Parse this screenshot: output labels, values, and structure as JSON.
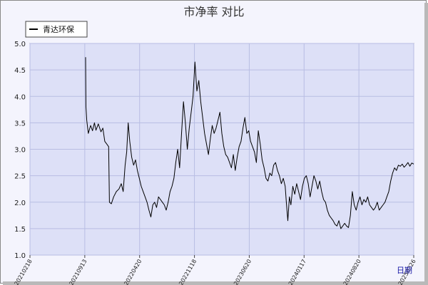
{
  "chart_data": {
    "type": "line",
    "title": "市净率 对比",
    "x_corner_label": "日期",
    "ylim": [
      1.0,
      5.0
    ],
    "yticks": [
      "5.0",
      "4.5",
      "4.0",
      "3.5",
      "3.0",
      "2.5",
      "2.0",
      "1.5",
      "1.0"
    ],
    "xticks": [
      "20210218",
      "20210913",
      "20220420",
      "20221118",
      "20230620",
      "20240117",
      "20240820",
      "20250326"
    ],
    "grid": true,
    "legend_position": "top-left",
    "series": [
      {
        "name": "青达环保",
        "color": "#000000",
        "points": [
          [
            0.145,
            4.74
          ],
          [
            0.146,
            3.8
          ],
          [
            0.148,
            3.55
          ],
          [
            0.152,
            3.3
          ],
          [
            0.158,
            3.45
          ],
          [
            0.163,
            3.35
          ],
          [
            0.168,
            3.5
          ],
          [
            0.172,
            3.36
          ],
          [
            0.178,
            3.48
          ],
          [
            0.185,
            3.33
          ],
          [
            0.19,
            3.4
          ],
          [
            0.195,
            3.15
          ],
          [
            0.2,
            3.1
          ],
          [
            0.205,
            3.05
          ],
          [
            0.207,
            2.0
          ],
          [
            0.212,
            1.97
          ],
          [
            0.218,
            2.1
          ],
          [
            0.225,
            2.2
          ],
          [
            0.232,
            2.25
          ],
          [
            0.238,
            2.35
          ],
          [
            0.243,
            2.2
          ],
          [
            0.248,
            2.7
          ],
          [
            0.252,
            2.95
          ],
          [
            0.256,
            3.5
          ],
          [
            0.26,
            3.15
          ],
          [
            0.265,
            2.85
          ],
          [
            0.27,
            2.7
          ],
          [
            0.275,
            2.8
          ],
          [
            0.28,
            2.6
          ],
          [
            0.285,
            2.45
          ],
          [
            0.29,
            2.3
          ],
          [
            0.295,
            2.2
          ],
          [
            0.3,
            2.1
          ],
          [
            0.305,
            2.0
          ],
          [
            0.31,
            1.85
          ],
          [
            0.315,
            1.72
          ],
          [
            0.32,
            1.95
          ],
          [
            0.325,
            2.0
          ],
          [
            0.33,
            1.9
          ],
          [
            0.335,
            2.1
          ],
          [
            0.34,
            2.05
          ],
          [
            0.345,
            2.0
          ],
          [
            0.35,
            1.95
          ],
          [
            0.355,
            1.85
          ],
          [
            0.36,
            2.0
          ],
          [
            0.365,
            2.2
          ],
          [
            0.37,
            2.3
          ],
          [
            0.375,
            2.45
          ],
          [
            0.38,
            2.75
          ],
          [
            0.385,
            3.0
          ],
          [
            0.39,
            2.65
          ],
          [
            0.395,
            3.3
          ],
          [
            0.4,
            3.9
          ],
          [
            0.405,
            3.5
          ],
          [
            0.41,
            3.0
          ],
          [
            0.415,
            3.4
          ],
          [
            0.42,
            3.7
          ],
          [
            0.425,
            4.0
          ],
          [
            0.43,
            4.65
          ],
          [
            0.435,
            4.1
          ],
          [
            0.44,
            4.3
          ],
          [
            0.445,
            3.9
          ],
          [
            0.45,
            3.6
          ],
          [
            0.455,
            3.3
          ],
          [
            0.46,
            3.1
          ],
          [
            0.465,
            2.9
          ],
          [
            0.47,
            3.2
          ],
          [
            0.475,
            3.45
          ],
          [
            0.48,
            3.3
          ],
          [
            0.485,
            3.4
          ],
          [
            0.49,
            3.55
          ],
          [
            0.495,
            3.7
          ],
          [
            0.5,
            3.3
          ],
          [
            0.505,
            3.05
          ],
          [
            0.51,
            2.9
          ],
          [
            0.515,
            2.85
          ],
          [
            0.52,
            2.75
          ],
          [
            0.525,
            2.65
          ],
          [
            0.53,
            2.9
          ],
          [
            0.535,
            2.6
          ],
          [
            0.54,
            2.85
          ],
          [
            0.545,
            3.05
          ],
          [
            0.55,
            3.15
          ],
          [
            0.555,
            3.4
          ],
          [
            0.56,
            3.6
          ],
          [
            0.565,
            3.3
          ],
          [
            0.57,
            3.35
          ],
          [
            0.575,
            3.15
          ],
          [
            0.58,
            3.05
          ],
          [
            0.585,
            2.95
          ],
          [
            0.59,
            2.75
          ],
          [
            0.595,
            3.35
          ],
          [
            0.6,
            3.1
          ],
          [
            0.605,
            2.8
          ],
          [
            0.61,
            2.65
          ],
          [
            0.615,
            2.45
          ],
          [
            0.62,
            2.4
          ],
          [
            0.625,
            2.55
          ],
          [
            0.63,
            2.5
          ],
          [
            0.635,
            2.7
          ],
          [
            0.64,
            2.75
          ],
          [
            0.645,
            2.6
          ],
          [
            0.65,
            2.5
          ],
          [
            0.655,
            2.35
          ],
          [
            0.66,
            2.45
          ],
          [
            0.665,
            2.3
          ],
          [
            0.668,
            2.0
          ],
          [
            0.672,
            1.65
          ],
          [
            0.676,
            2.1
          ],
          [
            0.68,
            1.95
          ],
          [
            0.685,
            2.3
          ],
          [
            0.69,
            2.15
          ],
          [
            0.695,
            2.35
          ],
          [
            0.7,
            2.2
          ],
          [
            0.705,
            2.05
          ],
          [
            0.71,
            2.3
          ],
          [
            0.715,
            2.45
          ],
          [
            0.72,
            2.5
          ],
          [
            0.725,
            2.35
          ],
          [
            0.73,
            2.1
          ],
          [
            0.735,
            2.3
          ],
          [
            0.74,
            2.5
          ],
          [
            0.745,
            2.4
          ],
          [
            0.75,
            2.25
          ],
          [
            0.755,
            2.4
          ],
          [
            0.76,
            2.2
          ],
          [
            0.765,
            2.05
          ],
          [
            0.77,
            2.0
          ],
          [
            0.775,
            1.85
          ],
          [
            0.78,
            1.75
          ],
          [
            0.785,
            1.7
          ],
          [
            0.79,
            1.65
          ],
          [
            0.795,
            1.58
          ],
          [
            0.8,
            1.55
          ],
          [
            0.805,
            1.65
          ],
          [
            0.81,
            1.5
          ],
          [
            0.815,
            1.55
          ],
          [
            0.82,
            1.6
          ],
          [
            0.825,
            1.55
          ],
          [
            0.83,
            1.52
          ],
          [
            0.835,
            1.75
          ],
          [
            0.84,
            2.2
          ],
          [
            0.845,
            1.95
          ],
          [
            0.85,
            1.85
          ],
          [
            0.855,
            2.0
          ],
          [
            0.86,
            2.1
          ],
          [
            0.865,
            1.95
          ],
          [
            0.87,
            2.05
          ],
          [
            0.875,
            2.0
          ],
          [
            0.88,
            2.1
          ],
          [
            0.885,
            1.95
          ],
          [
            0.89,
            1.9
          ],
          [
            0.895,
            1.85
          ],
          [
            0.9,
            1.9
          ],
          [
            0.905,
            2.0
          ],
          [
            0.91,
            1.85
          ],
          [
            0.915,
            1.9
          ],
          [
            0.92,
            1.95
          ],
          [
            0.925,
            2.0
          ],
          [
            0.93,
            2.1
          ],
          [
            0.935,
            2.2
          ],
          [
            0.94,
            2.4
          ],
          [
            0.945,
            2.55
          ],
          [
            0.95,
            2.65
          ],
          [
            0.955,
            2.6
          ],
          [
            0.96,
            2.7
          ],
          [
            0.965,
            2.68
          ],
          [
            0.97,
            2.72
          ],
          [
            0.975,
            2.66
          ],
          [
            0.98,
            2.7
          ],
          [
            0.985,
            2.75
          ],
          [
            0.99,
            2.68
          ],
          [
            0.995,
            2.74
          ],
          [
            1.0,
            2.72
          ]
        ]
      }
    ]
  }
}
